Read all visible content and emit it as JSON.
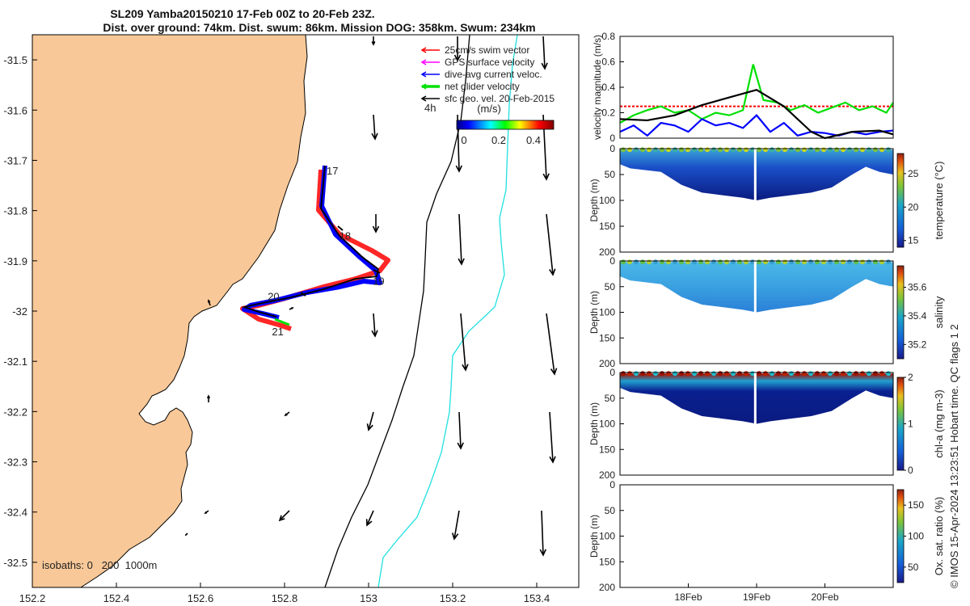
{
  "title": {
    "line1": "SL209 Yamba20150210 17-Feb 00Z to 20-Feb 23Z.",
    "line2": "Dist. over ground: 74km. Dist. swum: 86km. Mission DOG: 358km. Swum: 234km"
  },
  "map": {
    "x_ticks": [
      "152.2",
      "152.4",
      "152.6",
      "152.8",
      "153",
      "153.2",
      "153.4"
    ],
    "y_ticks": [
      "-31.5",
      "-31.6",
      "-31.7",
      "-31.8",
      "-31.9",
      "-32",
      "-32.1",
      "-32.2",
      "-32.3",
      "-32.4",
      "-32.5"
    ],
    "xlim": [
      152.2,
      153.5
    ],
    "ylim": [
      -32.55,
      -31.45
    ],
    "legend": [
      {
        "label": "25cm/s swim vector",
        "color": "#ff0000"
      },
      {
        "label": "GPS surface velocity",
        "color": "#ff00ff"
      },
      {
        "label": "dive-avg current veloc.",
        "color": "#0000ff"
      },
      {
        "label": "net glider velocity",
        "color": "#00e000"
      },
      {
        "label": "sfc geo. vel. 20-Feb-2015",
        "color": "#000000"
      }
    ],
    "time_step_label": "4h",
    "colorbar_label": "(m/s)",
    "colorbar_ticks": [
      "0",
      "0.2",
      "0.4"
    ],
    "day_labels": [
      {
        "text": "17",
        "lon": 152.9,
        "lat": -31.72
      },
      {
        "text": "18",
        "lon": 152.93,
        "lat": -31.85
      },
      {
        "text": "19",
        "lon": 153.01,
        "lat": -31.94
      },
      {
        "text": "20",
        "lon": 152.76,
        "lat": -31.97
      },
      {
        "text": "21",
        "lon": 152.77,
        "lat": -32.04
      }
    ],
    "isobaths_label": "isobaths: 0   200  1000m"
  },
  "right_footnote": "© IMOS 15-Apr-2024 13:23:51 Hobart time. QC flags 1  2",
  "chart_data": [
    {
      "type": "line",
      "ylabel": "velocity magnitude (m/s)",
      "yticks": [
        "0",
        "0.2",
        "0.4",
        "0.6",
        "0.8"
      ],
      "ylim": [
        0,
        0.8
      ],
      "xlim_days": [
        17.0,
        21.0
      ],
      "series": [
        {
          "color": "#ff0000",
          "values_x": [
            17.0,
            18.0,
            19.0,
            20.0,
            21.0
          ],
          "values_y": [
            0.25,
            0.25,
            0.25,
            0.25,
            0.25
          ]
        },
        {
          "color": "#00e000",
          "values_x": [
            17.0,
            17.2,
            17.4,
            17.6,
            17.8,
            18.0,
            18.2,
            18.4,
            18.6,
            18.8,
            18.95,
            19.1,
            19.3,
            19.5,
            19.7,
            19.9,
            20.1,
            20.3,
            20.5,
            20.7,
            20.9,
            21.0
          ],
          "values_y": [
            0.12,
            0.18,
            0.22,
            0.25,
            0.2,
            0.22,
            0.15,
            0.2,
            0.18,
            0.22,
            0.58,
            0.3,
            0.28,
            0.22,
            0.26,
            0.2,
            0.24,
            0.28,
            0.22,
            0.25,
            0.2,
            0.28
          ]
        },
        {
          "color": "#0000ff",
          "values_x": [
            17.0,
            17.2,
            17.4,
            17.6,
            17.8,
            18.0,
            18.2,
            18.4,
            18.6,
            18.8,
            19.0,
            19.2,
            19.4,
            19.6,
            19.8,
            20.0,
            20.2,
            20.4,
            20.6,
            20.8,
            21.0
          ],
          "values_y": [
            0.05,
            0.1,
            0.02,
            0.12,
            0.1,
            0.05,
            0.15,
            0.1,
            0.12,
            0.08,
            0.18,
            0.05,
            0.12,
            0.02,
            0.05,
            0.04,
            0.02,
            0.05,
            0.03,
            0.05,
            0.06
          ]
        },
        {
          "color": "#000000",
          "values_x": [
            17.0,
            17.4,
            17.8,
            18.2,
            18.6,
            19.0,
            19.4,
            19.8,
            20.0,
            20.4,
            20.8,
            21.0
          ],
          "values_y": [
            0.15,
            0.14,
            0.18,
            0.26,
            0.32,
            0.38,
            0.25,
            0.05,
            0.0,
            0.05,
            0.06,
            0.03
          ]
        }
      ]
    },
    {
      "type": "heatmap",
      "variable": "temperature",
      "ylabel": "Depth (m)",
      "colorbar_label": "temperature (°C)",
      "yticks": [
        "0",
        "50",
        "100",
        "150",
        "200"
      ],
      "ylim": [
        0,
        200
      ],
      "colorbar_ticks": [
        "15",
        "20",
        "25"
      ],
      "colorbar_range": [
        14,
        28
      ],
      "surface_value": 24,
      "deep_value": 15
    },
    {
      "type": "heatmap",
      "variable": "salinity",
      "ylabel": "Depth (m)",
      "colorbar_label": "salinity",
      "yticks": [
        "0",
        "50",
        "100",
        "150",
        "200"
      ],
      "ylim": [
        0,
        200
      ],
      "colorbar_ticks": [
        "35.2",
        "35.4",
        "35.6"
      ],
      "colorbar_range": [
        35.1,
        35.75
      ],
      "surface_value": 35.5,
      "deep_value": 35.35
    },
    {
      "type": "heatmap",
      "variable": "chl-a",
      "ylabel": "Depth (m)",
      "colorbar_label": "chl-a (mg m-3)",
      "yticks": [
        "0",
        "50",
        "100",
        "150",
        "200"
      ],
      "ylim": [
        0,
        200
      ],
      "colorbar_ticks": [
        "0",
        "1",
        "2"
      ],
      "colorbar_range": [
        0,
        2
      ],
      "surface_value": 2,
      "deep_value": 0
    },
    {
      "type": "heatmap",
      "variable": "oxygen",
      "ylabel": "Depth (m)",
      "colorbar_label": "Ox. sat. ratio (%)",
      "yticks": [
        "0",
        "50",
        "100",
        "150",
        "200"
      ],
      "ylim": [
        0,
        200
      ],
      "colorbar_ticks": [
        "50",
        "100",
        "150"
      ],
      "colorbar_range": [
        25,
        175
      ],
      "xticks": [
        "18Feb",
        "19Feb",
        "20Feb"
      ]
    }
  ]
}
